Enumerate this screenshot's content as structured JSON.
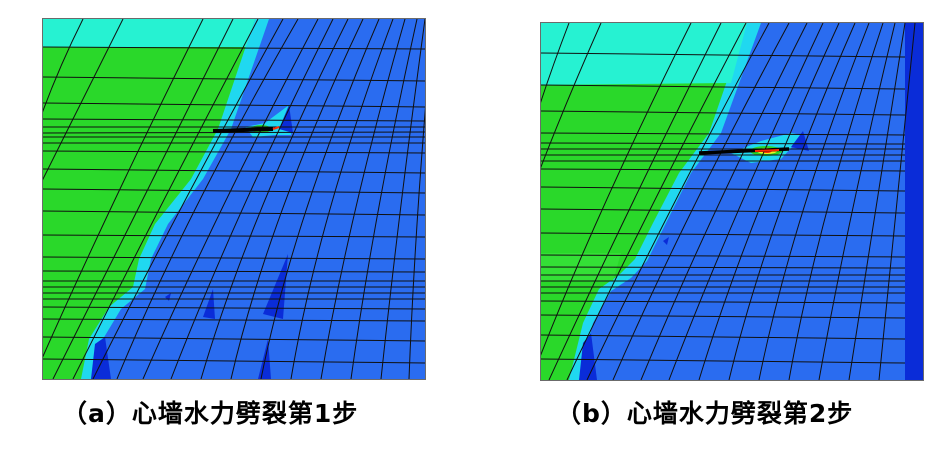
{
  "figures": [
    {
      "caption": "（a）心墙水力劈裂第1步"
    },
    {
      "caption": "（b）心墙水力劈裂第2步"
    }
  ],
  "colors": {
    "cyan_band": "#26f2d2",
    "green_core": "#2ad82a",
    "transition_cyan": "#20d8f0",
    "blue_main": "#2a6cf0",
    "blue_dark": "#0a2cd8",
    "crack_line": "#000000",
    "crack_hot": "#ff2a00"
  }
}
